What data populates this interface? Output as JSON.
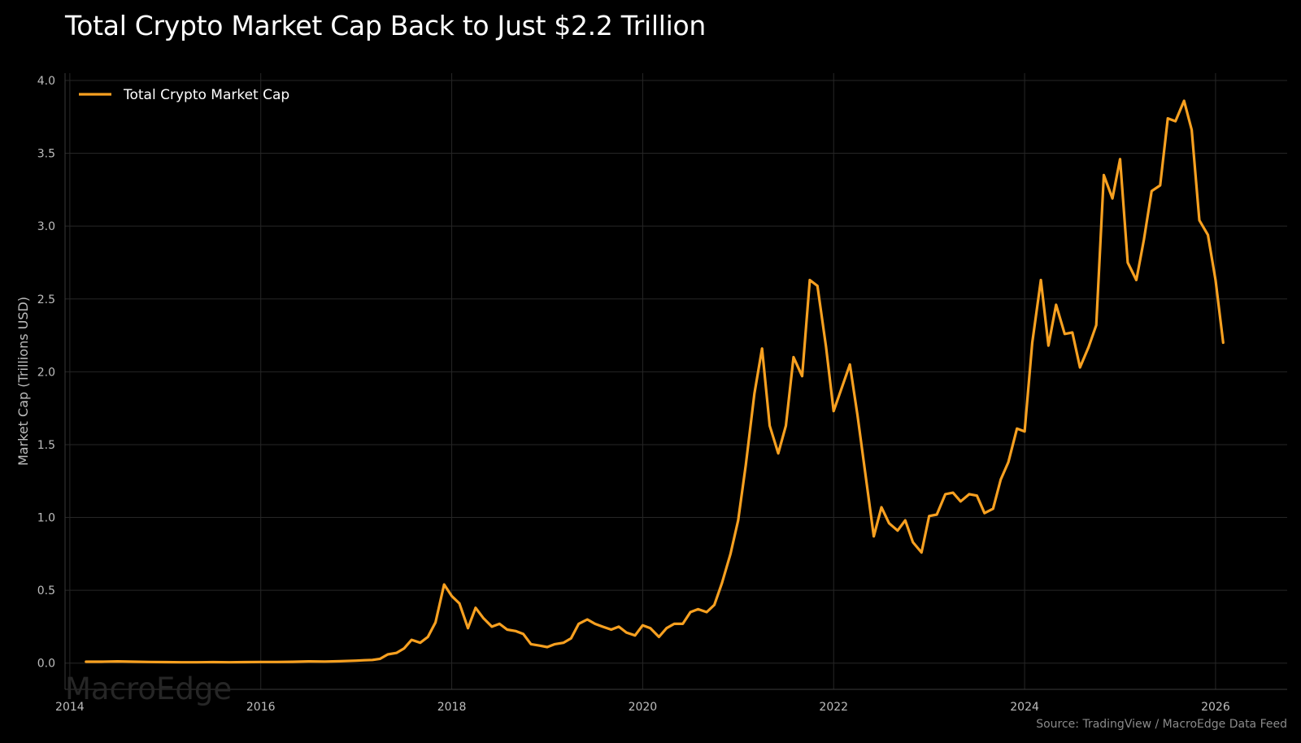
{
  "chart_data": {
    "type": "line",
    "title": "Total Crypto Market Cap Back to Just $2.2 Trillion",
    "xlabel": "",
    "ylabel": "Market Cap (Trillions USD)",
    "xlim": [
      2013.95,
      2026.75
    ],
    "ylim": [
      -0.18,
      4.05
    ],
    "x_ticks": [
      2014,
      2016,
      2018,
      2020,
      2022,
      2024,
      2026
    ],
    "x_tick_labels": [
      "2014",
      "2016",
      "2018",
      "2020",
      "2022",
      "2024",
      "2026"
    ],
    "y_ticks": [
      0.0,
      0.5,
      1.0,
      1.5,
      2.0,
      2.5,
      3.0,
      3.5,
      4.0
    ],
    "y_tick_labels": [
      "0.0",
      "0.5",
      "1.0",
      "1.5",
      "2.0",
      "2.5",
      "3.0",
      "3.5",
      "4.0"
    ],
    "grid": true,
    "legend": "top-left",
    "watermark": "MacroEdge",
    "source": "Source: TradingView / MacroEdge Data Feed",
    "series": [
      {
        "name": "Total Crypto Market Cap",
        "color": "#f7a020",
        "x": [
          2014.17,
          2014.33,
          2014.5,
          2014.67,
          2014.83,
          2015.0,
          2015.17,
          2015.33,
          2015.5,
          2015.67,
          2015.83,
          2016.0,
          2016.17,
          2016.33,
          2016.5,
          2016.67,
          2016.83,
          2017.0,
          2017.08,
          2017.17,
          2017.25,
          2017.33,
          2017.42,
          2017.5,
          2017.58,
          2017.67,
          2017.75,
          2017.83,
          2017.92,
          2018.0,
          2018.08,
          2018.17,
          2018.25,
          2018.33,
          2018.42,
          2018.5,
          2018.58,
          2018.67,
          2018.75,
          2018.83,
          2018.92,
          2019.0,
          2019.08,
          2019.17,
          2019.25,
          2019.33,
          2019.42,
          2019.5,
          2019.58,
          2019.67,
          2019.75,
          2019.83,
          2019.92,
          2020.0,
          2020.08,
          2020.17,
          2020.25,
          2020.33,
          2020.42,
          2020.5,
          2020.58,
          2020.67,
          2020.75,
          2020.83,
          2020.92,
          2021.0,
          2021.08,
          2021.17,
          2021.25,
          2021.33,
          2021.42,
          2021.5,
          2021.58,
          2021.67,
          2021.75,
          2021.83,
          2021.92,
          2022.0,
          2022.08,
          2022.17,
          2022.25,
          2022.33,
          2022.42,
          2022.5,
          2022.58,
          2022.67,
          2022.75,
          2022.83,
          2022.92,
          2023.0,
          2023.08,
          2023.17,
          2023.25,
          2023.33,
          2023.42,
          2023.5,
          2023.58,
          2023.67,
          2023.75,
          2023.83,
          2023.92,
          2024.0,
          2024.08,
          2024.17,
          2024.25,
          2024.33,
          2024.42,
          2024.5,
          2024.58,
          2024.67,
          2024.75,
          2024.83,
          2024.92,
          2025.0,
          2025.08,
          2025.17,
          2025.25,
          2025.33,
          2025.42,
          2025.5,
          2025.58,
          2025.67,
          2025.75,
          2025.83,
          2025.92,
          2026.0,
          2026.08
        ],
        "y": [
          0.01,
          0.01,
          0.012,
          0.01,
          0.008,
          0.007,
          0.006,
          0.006,
          0.007,
          0.006,
          0.007,
          0.008,
          0.008,
          0.009,
          0.012,
          0.011,
          0.013,
          0.017,
          0.02,
          0.022,
          0.03,
          0.06,
          0.07,
          0.1,
          0.16,
          0.14,
          0.18,
          0.28,
          0.54,
          0.46,
          0.41,
          0.24,
          0.38,
          0.31,
          0.25,
          0.27,
          0.23,
          0.22,
          0.2,
          0.13,
          0.12,
          0.11,
          0.13,
          0.14,
          0.17,
          0.27,
          0.3,
          0.27,
          0.25,
          0.23,
          0.25,
          0.21,
          0.19,
          0.26,
          0.24,
          0.18,
          0.24,
          0.27,
          0.27,
          0.35,
          0.37,
          0.35,
          0.4,
          0.55,
          0.75,
          0.98,
          1.36,
          1.85,
          2.16,
          1.63,
          1.44,
          1.63,
          2.1,
          1.97,
          2.63,
          2.59,
          2.17,
          1.73,
          1.88,
          2.05,
          1.7,
          1.31,
          0.87,
          1.07,
          0.96,
          0.91,
          0.98,
          0.83,
          0.76,
          1.01,
          1.02,
          1.16,
          1.17,
          1.11,
          1.16,
          1.15,
          1.03,
          1.06,
          1.26,
          1.38,
          1.61,
          1.59,
          2.2,
          2.63,
          2.18,
          2.46,
          2.26,
          2.27,
          2.03,
          2.17,
          2.32,
          3.35,
          3.19,
          3.46,
          2.75,
          2.63,
          2.91,
          3.24,
          3.28,
          3.74,
          3.72,
          3.86,
          3.66,
          3.04,
          2.94,
          2.63,
          2.2
        ]
      }
    ]
  }
}
